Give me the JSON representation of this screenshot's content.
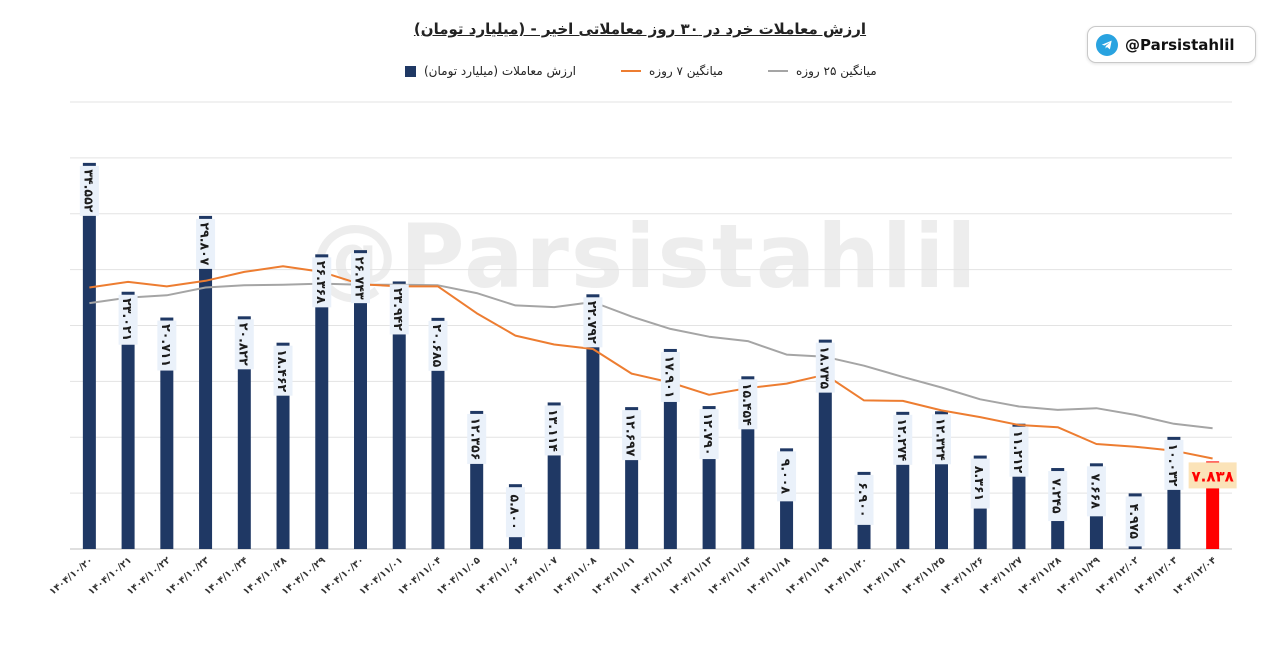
{
  "header": {
    "title": "ارزش معاملات خرد در ۳۰ روز معاملاتی اخیر - (میلیارد تومان)",
    "badge_text": "@Parsistahlil",
    "watermark": "@Parsistahlil"
  },
  "legend": {
    "bars": "ارزش معاملات (میلیارد تومان)",
    "ma7": "میانگین ۷ روزه",
    "ma25": "میانگین ۲۵ روزه"
  },
  "colors": {
    "bar": "#1f3864",
    "bar_highlight": "#ff0000",
    "ma7": "#ed7d31",
    "ma25": "#a5a5a5",
    "grid": "#e3e3e3",
    "label_bg": "#eaf1fa",
    "highlight_label_bg": "#fbe3b8"
  },
  "chart_data": {
    "type": "bar",
    "title": "ارزش معاملات خرد در ۳۰ روز معاملاتی اخیر - (میلیارد تومان)",
    "ylim": [
      0,
      40
    ],
    "grid": true,
    "legend_position": "top",
    "categories": [
      "۱۴۰۴/۱۰/۲۰",
      "۱۴۰۴/۱۰/۲۱",
      "۱۴۰۴/۱۰/۲۲",
      "۱۴۰۴/۱۰/۲۳",
      "۱۴۰۴/۱۰/۲۴",
      "۱۴۰۴/۱۰/۲۸",
      "۱۴۰۴/۱۰/۲۹",
      "۱۴۰۴/۱۰/۳۰",
      "۱۴۰۴/۱۱/۰۱",
      "۱۴۰۴/۱۱/۰۴",
      "۱۴۰۴/۱۱/۰۵",
      "۱۴۰۴/۱۱/۰۶",
      "۱۴۰۴/۱۱/۰۷",
      "۱۴۰۴/۱۱/۰۸",
      "۱۴۰۴/۱۱/۱۱",
      "۱۴۰۴/۱۱/۱۲",
      "۱۴۰۴/۱۱/۱۳",
      "۱۴۰۴/۱۱/۱۴",
      "۱۴۰۴/۱۱/۱۸",
      "۱۴۰۴/۱۱/۱۹",
      "۱۴۰۴/۱۱/۲۰",
      "۱۴۰۴/۱۱/۲۱",
      "۱۴۰۴/۱۱/۲۵",
      "۱۴۰۴/۱۱/۲۶",
      "۱۴۰۴/۱۱/۲۷",
      "۱۴۰۴/۱۱/۲۸",
      "۱۴۰۴/۱۱/۲۹",
      "۱۴۰۴/۱۲/۰۲",
      "۱۴۰۴/۱۲/۰۳",
      "۱۴۰۴/۱۲/۰۴"
    ],
    "value_labels": [
      "۳۴.۵۵۲",
      "۲۳.۰۲۱",
      "۲۰.۷۱۱",
      "۲۹.۸۰۷",
      "۲۰.۸۲۲",
      "۱۸.۴۶۲",
      "۲۶.۳۶۸",
      "۲۶.۷۴۳",
      "۲۳.۹۴۲",
      "۲۰.۶۸۵",
      "۱۲.۳۵۶",
      "۵.۸۰۰",
      "۱۳.۱۱۴",
      "۲۲.۷۹۲",
      "۱۲.۶۹۷",
      "۱۷.۹۰۱",
      "۱۲.۷۹۰",
      "۱۵.۴۵۴",
      "۹.۰۰۸",
      "۱۸.۷۳۵",
      "۶.۹۰۰",
      "۱۲.۲۷۴",
      "۱۲.۳۲۴",
      "۸.۳۶۱",
      "۱۱.۲۱۲",
      "۷.۲۴۵",
      "۷.۶۶۸",
      "۴.۹۷۵",
      "۱۰.۰۳۲",
      "۷.۸۳۸"
    ],
    "series": [
      {
        "name": "ارزش معاملات (میلیارد تومان)",
        "type": "bar",
        "values": [
          34.552,
          23.021,
          20.711,
          29.807,
          20.822,
          18.462,
          26.368,
          26.743,
          23.942,
          20.685,
          12.356,
          5.8,
          13.114,
          22.792,
          12.697,
          17.901,
          12.79,
          15.454,
          9.008,
          18.735,
          6.9,
          12.274,
          12.324,
          8.361,
          11.212,
          7.245,
          7.668,
          4.975,
          10.032,
          7.838
        ]
      },
      {
        "name": "میانگین ۷ روزه",
        "type": "line",
        "values": [
          23.4,
          23.9,
          23.5,
          24.0,
          24.8,
          25.3,
          24.8,
          23.7,
          23.5,
          23.5,
          21.1,
          19.1,
          18.3,
          17.9,
          15.7,
          14.9,
          13.8,
          14.4,
          14.8,
          15.6,
          13.3,
          13.25,
          12.4,
          11.8,
          11.1,
          10.9,
          9.4,
          9.15,
          8.8,
          8.1
        ]
      },
      {
        "name": "میانگین ۲۵ روزه",
        "type": "line",
        "values": [
          22.0,
          22.5,
          22.7,
          23.4,
          23.6,
          23.65,
          23.75,
          23.65,
          23.65,
          23.6,
          22.9,
          21.8,
          21.65,
          22.1,
          20.8,
          19.7,
          19.0,
          18.6,
          17.4,
          17.2,
          16.4,
          15.4,
          14.45,
          13.4,
          12.75,
          12.45,
          12.6,
          12.0,
          11.2,
          10.8
        ]
      }
    ]
  }
}
